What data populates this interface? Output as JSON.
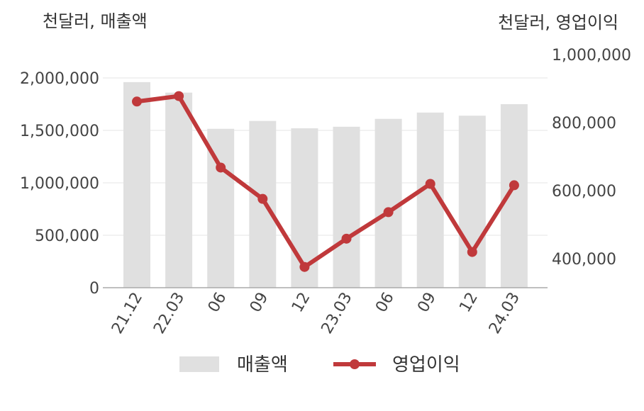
{
  "chart_data": {
    "type": "bar+line",
    "left_unit": "천달러, 매출액",
    "right_unit": "천달러, 영업이익",
    "categories": [
      "21.12",
      "22.03",
      "06",
      "09",
      "12",
      "23.03",
      "06",
      "09",
      "12",
      "24.03"
    ],
    "series": [
      {
        "name": "매출액",
        "type": "bar",
        "axis": "left",
        "color": "#e0e0e0",
        "values": [
          1960000,
          1860000,
          1515000,
          1590000,
          1520000,
          1535000,
          1610000,
          1670000,
          1640000,
          1750000
        ]
      },
      {
        "name": "영업이익",
        "type": "line",
        "axis": "right",
        "color": "#c0393b",
        "values": [
          862000,
          878000,
          668000,
          576000,
          376000,
          459000,
          537000,
          620000,
          420000,
          616000
        ]
      }
    ],
    "left_axis": {
      "min": 0,
      "max": 2000000,
      "ticks": [
        "0",
        "500,000",
        "1,000,000",
        "1,500,000",
        "2,000,000"
      ],
      "tick_values": [
        0,
        500000,
        1000000,
        1500000,
        2000000
      ]
    },
    "right_axis": {
      "min": 315000,
      "max": 1000000,
      "ticks": [
        "400,000",
        "600,000",
        "800,000",
        "1,000,000"
      ],
      "tick_values": [
        400000,
        600000,
        800000,
        1000000
      ]
    },
    "legend": {
      "placement": "bottom",
      "items": [
        "매출액",
        "영업이익"
      ]
    },
    "grid": true
  }
}
